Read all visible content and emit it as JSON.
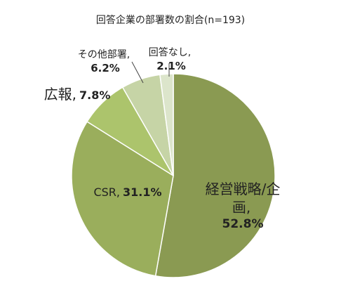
{
  "chart_data": {
    "type": "pie",
    "title": "回答企業の部署数の割合(n=193)",
    "categories": [
      "経営戦略/企画",
      "CSR",
      "広報",
      "その他部署",
      "回答なし"
    ],
    "values": [
      52.8,
      31.1,
      7.8,
      6.2,
      2.1
    ],
    "value_labels": [
      "52.8%",
      "31.1%",
      "7.8%",
      "6.2%",
      "2.1%"
    ],
    "separator": ",",
    "colors": [
      "#8a9a52",
      "#9aae5c",
      "#acc46c",
      "#c6d4a6",
      "#dce5cb"
    ]
  }
}
